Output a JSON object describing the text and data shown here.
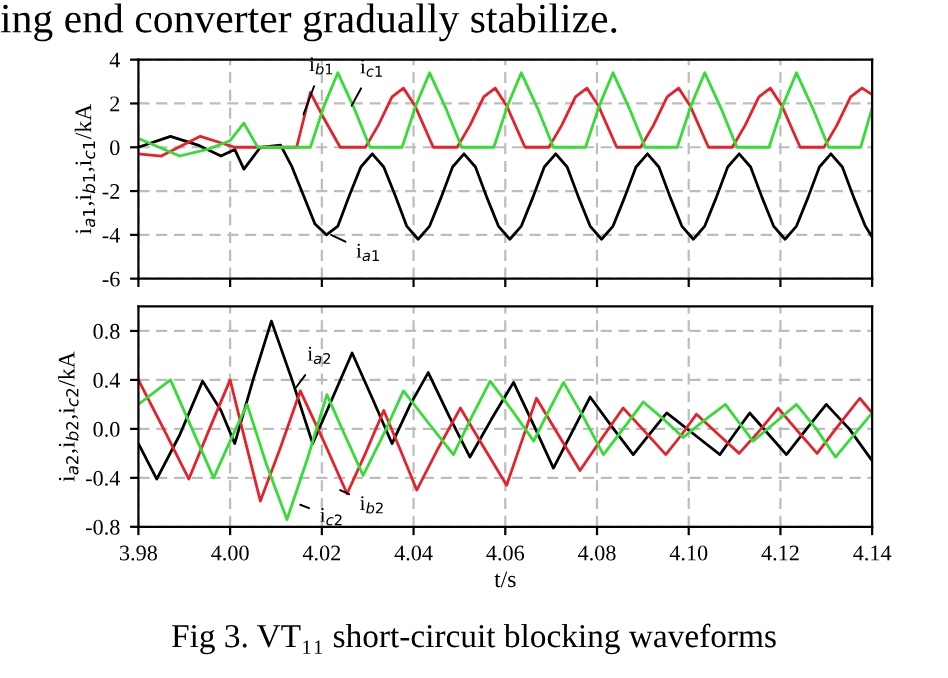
{
  "chart_data": [
    {
      "type": "line",
      "ylabel": "i$_{a1}$,i$_{b1}$,i$_{c1}$/kA",
      "xlim": [
        3.98,
        4.14
      ],
      "xticks": [
        3.98,
        4.0,
        4.02,
        4.04,
        4.06,
        4.08,
        4.1,
        4.12,
        4.14
      ],
      "ylim": [
        -6,
        4
      ],
      "yticks": [
        -6,
        -4,
        -2,
        0,
        2,
        4
      ],
      "grid": true,
      "tick_labels": "y",
      "annotations": [
        "ing end converter gradually stabilize.",
        {
          "text": "i$_{b1}$",
          "x": 4.016,
          "y": 1.5
        },
        {
          "text": "i$_{c1}$",
          "x": 4.0265,
          "y": 1.9
        },
        {
          "text": "i$_{a1}$",
          "x": 4.022,
          "y": -4.0
        }
      ],
      "series": [
        {
          "color": "#000000",
          "x": [
            3.98,
            3.987,
            3.993,
            3.998,
            4.001,
            4.003,
            4.0066,
            4.011,
            4.0135,
            4.016,
            4.0185,
            4.021,
            4.0235,
            4.026,
            4.0285,
            4.031,
            4.0335,
            4.036,
            4.0385,
            4.041,
            4.0435,
            4.046,
            4.0485,
            4.051,
            4.0535,
            4.056,
            4.0585,
            4.061,
            4.0635,
            4.066,
            4.0685,
            4.071,
            4.0735,
            4.076,
            4.0785,
            4.081,
            4.0835,
            4.086,
            4.0885,
            4.091,
            4.0935,
            4.096,
            4.0985,
            4.101,
            4.1035,
            4.106,
            4.1085,
            4.111,
            4.1135,
            4.116,
            4.1185,
            4.121,
            4.1235,
            4.126,
            4.1285,
            4.131,
            4.1335,
            4.136,
            4.1385,
            4.14
          ],
          "values": [
            0.0,
            0.5,
            0.1,
            -0.4,
            -0.1,
            -1.0,
            0.0,
            0.1,
            -0.9,
            -2.2,
            -3.5,
            -4.0,
            -3.6,
            -2.2,
            -0.9,
            -0.3,
            -0.9,
            -2.2,
            -3.6,
            -4.2,
            -3.6,
            -2.3,
            -0.9,
            -0.3,
            -0.9,
            -2.3,
            -3.6,
            -4.2,
            -3.6,
            -2.3,
            -0.9,
            -0.3,
            -0.9,
            -2.3,
            -3.6,
            -4.2,
            -3.6,
            -2.3,
            -0.9,
            -0.3,
            -0.9,
            -2.3,
            -3.6,
            -4.2,
            -3.6,
            -2.3,
            -0.9,
            -0.3,
            -0.9,
            -2.3,
            -3.6,
            -4.2,
            -3.6,
            -2.3,
            -0.9,
            -0.3,
            -0.9,
            -2.3,
            -3.6,
            -4.1
          ]
        },
        {
          "color": "#e8202a",
          "x": [
            3.98,
            3.985,
            3.9935,
            4.001,
            4.0145,
            4.0175,
            4.0205,
            4.024,
            4.0295,
            4.0323,
            4.0353,
            4.0378,
            4.0403,
            4.0443,
            4.0495,
            4.0523,
            4.0553,
            4.0578,
            4.0603,
            4.0643,
            4.0695,
            4.0723,
            4.0753,
            4.0778,
            4.0803,
            4.0843,
            4.0895,
            4.0923,
            4.0953,
            4.0978,
            4.1003,
            4.1043,
            4.1095,
            4.1123,
            4.1153,
            4.1178,
            4.1203,
            4.1243,
            4.1295,
            4.1323,
            4.1353,
            4.1378,
            4.14
          ],
          "values": [
            -0.3,
            -0.4,
            0.5,
            0.0,
            0.0,
            2.5,
            1.3,
            0.0,
            0.0,
            1.0,
            2.3,
            2.7,
            1.9,
            0.0,
            0.0,
            1.0,
            2.3,
            2.7,
            1.9,
            0.0,
            0.0,
            1.0,
            2.3,
            2.7,
            1.9,
            0.0,
            0.0,
            1.0,
            2.3,
            2.7,
            1.9,
            0.0,
            0.0,
            1.0,
            2.3,
            2.7,
            1.9,
            0.0,
            0.0,
            1.0,
            2.3,
            2.7,
            2.4
          ]
        },
        {
          "color": "#33dd33",
          "x": [
            3.98,
            3.989,
            3.995,
            4.0,
            4.003,
            4.006,
            4.0175,
            4.0205,
            4.0235,
            4.027,
            4.0305,
            4.0375,
            4.0405,
            4.0435,
            4.047,
            4.0505,
            4.0575,
            4.0605,
            4.0635,
            4.067,
            4.0705,
            4.0775,
            4.0805,
            4.0835,
            4.087,
            4.0905,
            4.0975,
            4.1005,
            4.1035,
            4.107,
            4.1105,
            4.1175,
            4.1205,
            4.1235,
            4.127,
            4.1305,
            4.1375,
            4.14
          ],
          "values": [
            0.4,
            -0.4,
            -0.1,
            0.3,
            1.1,
            0.0,
            0.0,
            1.9,
            3.4,
            1.8,
            0.0,
            0.0,
            1.9,
            3.4,
            1.8,
            0.0,
            0.0,
            1.9,
            3.4,
            1.8,
            0.0,
            0.0,
            1.9,
            3.4,
            1.8,
            0.0,
            0.0,
            1.9,
            3.4,
            1.8,
            0.0,
            0.0,
            1.9,
            3.4,
            1.8,
            0.0,
            0.0,
            1.8
          ]
        }
      ]
    },
    {
      "type": "line",
      "xlabel": "t/s",
      "ylabel": "i$_{a2}$,i$_{b2}$,i$_{c2}$/kA",
      "xlim": [
        3.98,
        4.14
      ],
      "xticks": [
        {
          "value": 3.98,
          "label": "3.98"
        },
        {
          "value": 4.0,
          "label": "4.00"
        },
        {
          "value": 4.02,
          "label": "4.02"
        },
        {
          "value": 4.04,
          "label": "4.04"
        },
        {
          "value": 4.06,
          "label": "4.06"
        },
        {
          "value": 4.08,
          "label": "4.08"
        },
        {
          "value": 4.1,
          "label": "4.10"
        },
        {
          "value": 4.12,
          "label": "4.12"
        },
        {
          "value": 4.14,
          "label": "4.14"
        }
      ],
      "ylim": [
        -0.8,
        1.0
      ],
      "yticks": [
        -0.8,
        -0.4,
        {
          "value": 0,
          "label": "0.0"
        },
        0.4,
        0.8
      ],
      "grid": true,
      "annotations": [
        "Fig 3. VT₁₁ short-circuit blocking waveforms",
        {
          "text": "i$_{a2}$",
          "x": 4.0144,
          "y": 0.34
        },
        {
          "text": "i$_{c2}$",
          "x": 4.0153,
          "y": -0.62
        },
        {
          "text": "i$_{b2}$",
          "x": 4.024,
          "y": -0.5
        }
      ],
      "series": [
        {
          "color": "#000000",
          "x": [
            3.98,
            3.984,
            3.989,
            3.994,
            3.998,
            4.001,
            4.005,
            4.009,
            4.0135,
            4.018,
            4.0223,
            4.0266,
            4.031,
            4.0353,
            4.0393,
            4.0432,
            4.0478,
            4.0523,
            4.057,
            4.0618,
            4.0662,
            4.0705,
            4.0745,
            4.0785,
            4.0832,
            4.0879,
            4.0915,
            4.0952,
            4.101,
            4.1068,
            4.11,
            4.1133,
            4.1173,
            4.1213,
            4.1257,
            4.13,
            4.135,
            4.14
          ],
          "values": [
            -0.12,
            -0.41,
            -0.05,
            0.39,
            0.15,
            -0.12,
            0.4,
            0.88,
            0.4,
            -0.12,
            0.25,
            0.62,
            0.25,
            -0.12,
            0.2,
            0.46,
            0.1,
            -0.23,
            0.08,
            0.38,
            0.03,
            -0.32,
            -0.03,
            0.26,
            0.02,
            -0.21,
            -0.04,
            0.13,
            -0.04,
            -0.21,
            -0.04,
            0.13,
            -0.04,
            -0.21,
            0.0,
            0.2,
            0.0,
            -0.26
          ]
        },
        {
          "color": "#e8202a",
          "x": [
            3.98,
            3.9855,
            3.991,
            3.9955,
            4.0,
            4.0033,
            4.0066,
            4.011,
            4.0153,
            4.0204,
            4.0255,
            4.0295,
            4.0335,
            4.0371,
            4.0407,
            4.0455,
            4.0502,
            4.0553,
            4.0603,
            4.0636,
            4.0668,
            4.0716,
            4.0763,
            4.081,
            4.0857,
            4.0904,
            4.095,
            4.0984,
            4.1017,
            4.1063,
            4.111,
            4.1153,
            4.1195,
            4.1238,
            4.128,
            4.1327,
            4.1373,
            4.14
          ],
          "values": [
            0.4,
            0.0,
            -0.41,
            0.0,
            0.4,
            -0.1,
            -0.59,
            -0.15,
            0.31,
            -0.1,
            -0.53,
            -0.2,
            0.15,
            -0.17,
            -0.5,
            -0.15,
            0.17,
            -0.15,
            -0.46,
            -0.1,
            0.25,
            -0.05,
            -0.34,
            -0.08,
            0.17,
            -0.02,
            -0.21,
            -0.05,
            0.12,
            -0.04,
            -0.2,
            -0.02,
            0.17,
            -0.02,
            -0.2,
            0.03,
            0.25,
            0.13
          ]
        },
        {
          "color": "#33dd33",
          "x": [
            3.98,
            3.987,
            3.9917,
            3.9964,
            4.0,
            4.0037,
            4.008,
            4.0124,
            4.0168,
            4.0211,
            4.025,
            4.029,
            4.0334,
            4.0378,
            4.0432,
            4.0487,
            4.0527,
            4.0567,
            4.0615,
            4.0662,
            4.0695,
            4.0727,
            4.077,
            4.0814,
            4.0857,
            4.0901,
            4.0945,
            4.0988,
            4.1034,
            4.108,
            4.111,
            4.114,
            4.1188,
            4.1235,
            4.1278,
            4.132,
            4.14
          ],
          "values": [
            0.2,
            0.4,
            0.0,
            -0.4,
            -0.1,
            0.2,
            -0.3,
            -0.74,
            -0.25,
            0.28,
            -0.05,
            -0.38,
            -0.05,
            0.31,
            0.05,
            -0.21,
            0.1,
            0.39,
            0.15,
            -0.1,
            0.15,
            0.38,
            0.1,
            -0.21,
            0.0,
            0.22,
            0.08,
            -0.07,
            0.07,
            0.2,
            0.05,
            -0.1,
            0.05,
            0.2,
            0.0,
            -0.23,
            0.13
          ]
        }
      ]
    }
  ]
}
